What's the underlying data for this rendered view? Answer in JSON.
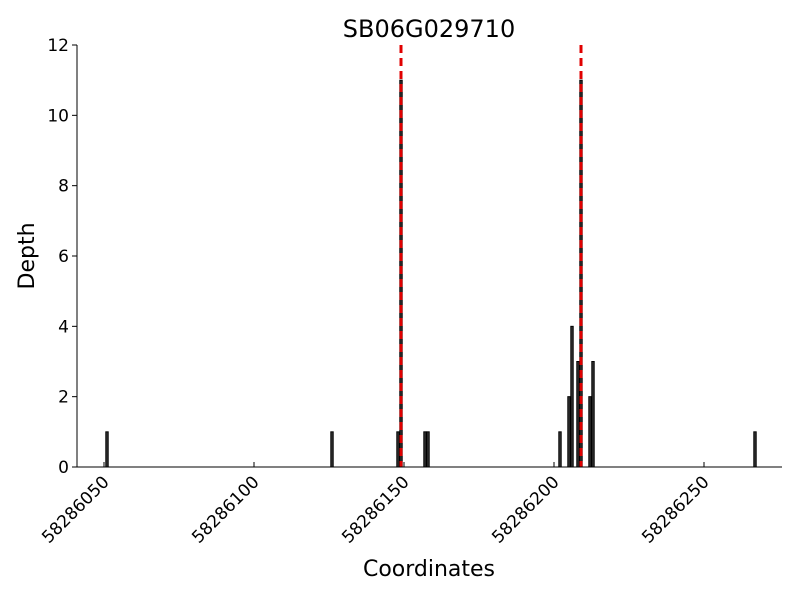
{
  "chart_data": {
    "type": "bar",
    "title": "SB06G029710",
    "xlabel": "Coordinates",
    "ylabel": "Depth",
    "x": [
      58286051,
      58286126,
      58286148,
      58286149,
      58286157,
      58286158,
      58286202,
      58286205,
      58286206,
      58286208,
      58286209,
      58286212,
      58286213,
      58286267
    ],
    "values": [
      1,
      1,
      1,
      11,
      1,
      1,
      1,
      2,
      4,
      3,
      11,
      2,
      3,
      1
    ],
    "color": "#333333",
    "xlim": [
      58286041,
      58286276
    ],
    "xticks": [
      58286050,
      58286100,
      58286150,
      58286200,
      58286250
    ],
    "ylim": [
      0,
      12
    ],
    "yticks": [
      0,
      2,
      4,
      6,
      8,
      10,
      12
    ],
    "vlines": [
      58286149,
      58286209
    ],
    "vline_color": "#e00000"
  }
}
